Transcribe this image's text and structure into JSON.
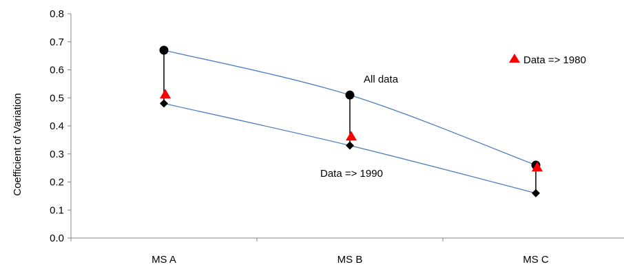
{
  "chart_data": {
    "type": "scatter",
    "categories": [
      "MS A",
      "MS B",
      "MS C"
    ],
    "ylabel": "Coefficient of Variation",
    "xlabel": "",
    "ylim": [
      0,
      0.8
    ],
    "y_ticks": [
      "0.0",
      "0.1",
      "0.2",
      "0.3",
      "0.4",
      "0.5",
      "0.6",
      "0.7",
      "0.8"
    ],
    "grid": false,
    "series": [
      {
        "key": "all",
        "values": [
          0.67,
          0.51,
          0.26
        ],
        "marker": "circle",
        "color": "#000000",
        "line_color": "#4F81BD"
      },
      {
        "key": "d1980",
        "name": "Data => 1980",
        "values": [
          0.51,
          0.36,
          0.25
        ],
        "marker": "triangle",
        "color": "#FF0000"
      },
      {
        "key": "d1990",
        "values": [
          0.48,
          0.33,
          0.16
        ],
        "marker": "diamond",
        "color": "#000000",
        "line_color": "#4F81BD"
      }
    ],
    "annotations": {
      "all_data": "All data",
      "data_1990": "Data => 1990"
    },
    "legend": {
      "label": "Data => 1980",
      "placement": "top-right"
    }
  }
}
